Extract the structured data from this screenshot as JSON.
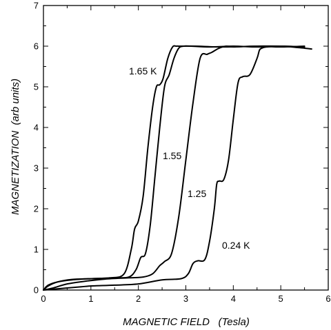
{
  "chart_data": {
    "type": "line",
    "xlabel": "MAGNETIC FIELD   (Tesla)",
    "ylabel": "MAGNETIZATION  (arb units)",
    "xlim": [
      0,
      6
    ],
    "ylim": [
      0,
      7
    ],
    "x_ticks": [
      "0",
      "1",
      "2",
      "3",
      "4",
      "5",
      "6"
    ],
    "y_ticks": [
      "0",
      "1",
      "2",
      "3",
      "4",
      "5",
      "6",
      "7"
    ],
    "grid": false,
    "legend": "none (curves labeled directly)",
    "series": [
      {
        "name": "1.65 K",
        "x": [
          0.0,
          0.1,
          0.3,
          0.6,
          1.0,
          1.4,
          1.7,
          1.85,
          1.92,
          2.0,
          2.1,
          2.2,
          2.3,
          2.38,
          2.45,
          2.52,
          2.62,
          2.72,
          2.8,
          2.9,
          3.2,
          3.8,
          4.5,
          5.0,
          5.5
        ],
        "y": [
          0.0,
          0.12,
          0.2,
          0.25,
          0.28,
          0.3,
          0.4,
          1.0,
          1.5,
          1.7,
          2.3,
          3.5,
          4.5,
          5.0,
          5.05,
          5.2,
          5.7,
          5.98,
          6.0,
          6.0,
          6.0,
          5.98,
          6.0,
          6.0,
          5.98
        ]
      },
      {
        "name": "1.55",
        "x": [
          0.0,
          0.1,
          0.3,
          0.6,
          1.0,
          1.5,
          1.8,
          1.95,
          2.05,
          2.15,
          2.25,
          2.35,
          2.45,
          2.55,
          2.65,
          2.75,
          2.85,
          2.95,
          3.1,
          3.5,
          4.0,
          4.5,
          5.0,
          5.5
        ],
        "y": [
          0.0,
          0.1,
          0.2,
          0.26,
          0.28,
          0.3,
          0.32,
          0.5,
          0.8,
          0.9,
          1.6,
          2.8,
          4.0,
          5.0,
          5.3,
          5.7,
          5.95,
          6.0,
          6.0,
          5.98,
          6.0,
          5.98,
          6.0,
          5.98
        ]
      },
      {
        "name": "1.25",
        "x": [
          0.0,
          0.2,
          0.5,
          0.9,
          1.3,
          1.8,
          2.1,
          2.3,
          2.45,
          2.55,
          2.7,
          2.85,
          3.0,
          3.15,
          3.3,
          3.45,
          3.55,
          3.7,
          3.85,
          4.0,
          4.5,
          5.0,
          5.5
        ],
        "y": [
          0.0,
          0.05,
          0.15,
          0.22,
          0.27,
          0.3,
          0.32,
          0.4,
          0.6,
          0.7,
          0.9,
          1.8,
          3.2,
          4.6,
          5.7,
          5.8,
          5.85,
          5.95,
          6.0,
          5.98,
          6.0,
          5.98,
          6.0
        ]
      },
      {
        "name": "0.24 K",
        "x": [
          0.0,
          0.5,
          0.8,
          1.0,
          1.5,
          2.0,
          2.5,
          2.9,
          3.05,
          3.15,
          3.25,
          3.4,
          3.5,
          3.6,
          3.65,
          3.7,
          3.8,
          3.9,
          4.0,
          4.1,
          4.2,
          4.35,
          4.5,
          4.55,
          4.6,
          4.7,
          5.0,
          5.5,
          5.65
        ],
        "y": [
          0.0,
          0.05,
          0.08,
          0.1,
          0.12,
          0.15,
          0.25,
          0.28,
          0.4,
          0.65,
          0.72,
          0.75,
          1.2,
          2.0,
          2.6,
          2.68,
          2.72,
          3.2,
          4.2,
          5.1,
          5.25,
          5.3,
          5.7,
          5.9,
          5.95,
          5.98,
          6.0,
          5.95,
          5.93
        ]
      }
    ],
    "annotations": [
      "1.65 K",
      "1.55",
      "1.25",
      "0.24 K"
    ]
  }
}
